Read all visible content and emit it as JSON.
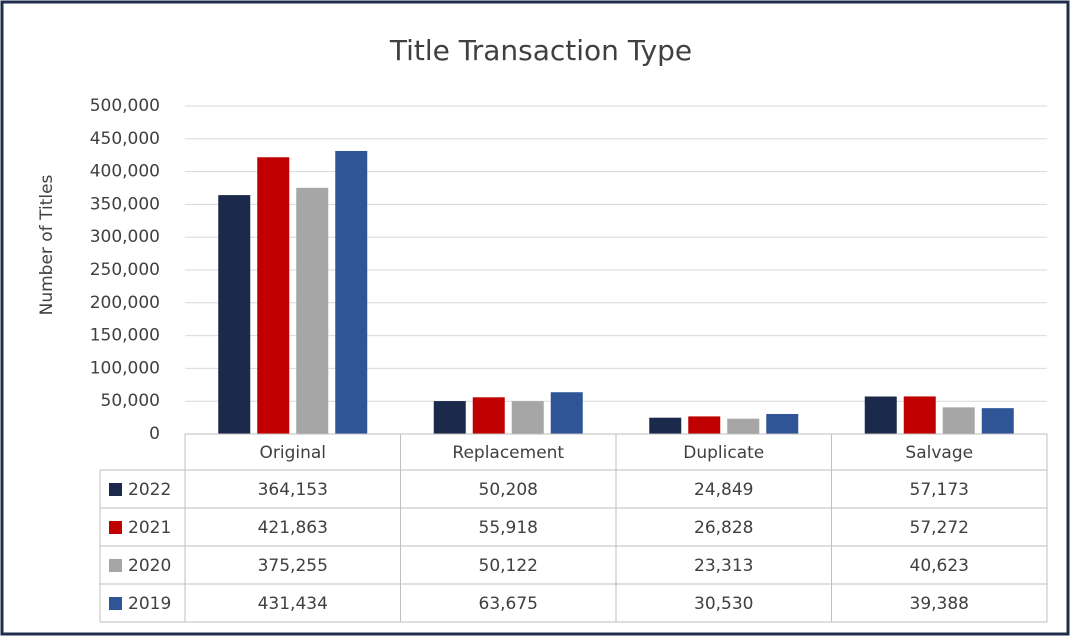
{
  "chart_data": {
    "type": "bar",
    "title": "Title Transaction Type",
    "y_label": "Number of Titles",
    "categories": [
      "Original",
      "Replacement",
      "Duplicate",
      "Salvage"
    ],
    "series": [
      {
        "name": "2022",
        "color": "#1b2a4a",
        "values": [
          364153,
          50208,
          24849,
          57173
        ],
        "value_labels": [
          "364,153",
          "50,208",
          "24,849",
          "57,173"
        ]
      },
      {
        "name": "2021",
        "color": "#c00000",
        "values": [
          421863,
          55918,
          26828,
          57272
        ],
        "value_labels": [
          "421,863",
          "55,918",
          "26,828",
          "57,272"
        ]
      },
      {
        "name": "2020",
        "color": "#a6a6a6",
        "values": [
          375255,
          50122,
          23313,
          40623
        ],
        "value_labels": [
          "375,255",
          "50,122",
          "23,313",
          "40,623"
        ]
      },
      {
        "name": "2019",
        "color": "#2f5597",
        "values": [
          431434,
          63675,
          30530,
          39388
        ],
        "value_labels": [
          "431,434",
          "63,675",
          "30,530",
          "39,388"
        ]
      }
    ],
    "ylim": [
      0,
      500000
    ],
    "yticks": [
      0,
      {
        "value": 50000,
        "label": "50,000"
      },
      {
        "value": 100000,
        "label": "100,000"
      },
      {
        "value": 150000,
        "label": "150,000"
      },
      {
        "value": 200000,
        "label": "200,000"
      },
      {
        "value": 250000,
        "label": "250,000"
      },
      {
        "value": 300000,
        "label": "300,000"
      },
      {
        "value": 350000,
        "label": "350,000"
      },
      {
        "value": 400000,
        "label": "400,000"
      },
      {
        "value": 450000,
        "label": "450,000"
      },
      {
        "value": 500000,
        "label": "500,000"
      }
    ],
    "grid": true
  }
}
